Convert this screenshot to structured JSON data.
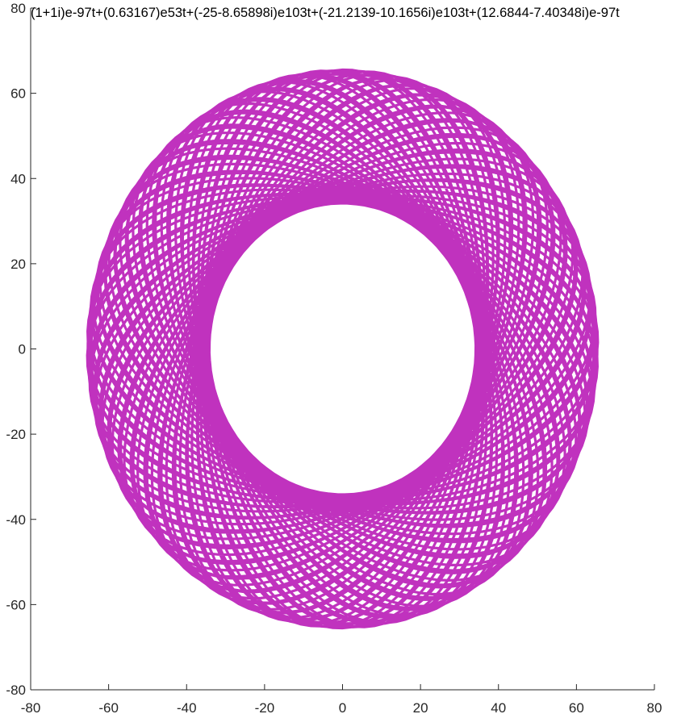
{
  "chart_data": {
    "type": "line",
    "title": "(1+1i)e-97t+(0.63167)e53t+(-25-8.65898i)e103t+(-21.2139-10.1656i)e103t+(12.6844-7.40348i)e-97t",
    "xlabel": "",
    "ylabel": "",
    "xlim": [
      -80,
      80
    ],
    "ylim": [
      -80,
      80
    ],
    "xticks": [
      -80,
      -60,
      -40,
      -20,
      0,
      20,
      40,
      60,
      80
    ],
    "yticks": [
      -80,
      -60,
      -40,
      -20,
      0,
      20,
      40,
      60,
      80
    ],
    "xtick_labels": [
      "-80",
      "-60",
      "-40",
      "-20",
      "0",
      "20",
      "40",
      "60",
      "80"
    ],
    "ytick_labels": [
      "-80",
      "-60",
      "-40",
      "-20",
      "0",
      "20",
      "40",
      "60",
      "80"
    ],
    "grid": false,
    "color": "#C032BE",
    "series": [
      {
        "terms": [
          {
            "re": 1,
            "im": 1,
            "freq": -97
          },
          {
            "re": 0.63167,
            "im": 0,
            "freq": 53
          },
          {
            "re": -25,
            "im": -8.65898,
            "freq": 103
          },
          {
            "re": -21.2139,
            "im": -10.1656,
            "freq": 103
          },
          {
            "re": 12.6844,
            "im": -7.40348,
            "freq": -97
          }
        ],
        "t_range": [
          0,
          6.283185307
        ]
      }
    ]
  }
}
